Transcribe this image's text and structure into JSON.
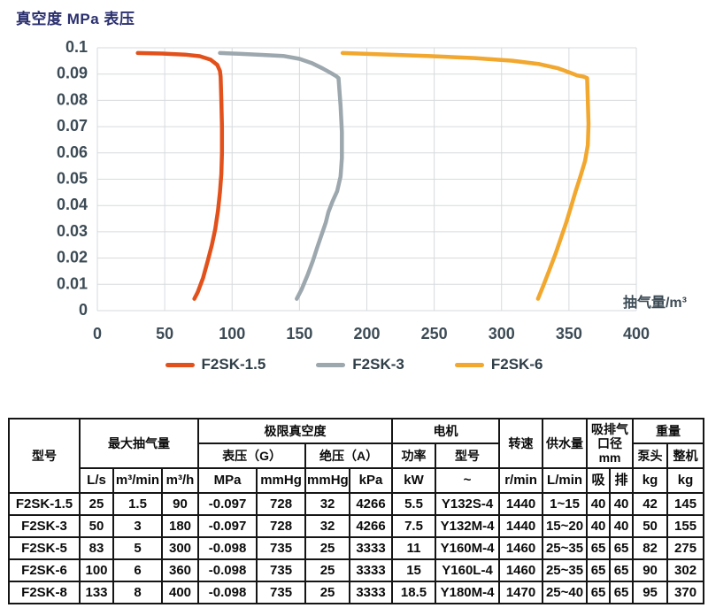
{
  "chart_data": {
    "type": "line",
    "title": "真空度 MPa 表压",
    "xlabel": "抽气量/m³",
    "ylabel": "真空度 MPa 表压",
    "xlim": [
      0,
      400
    ],
    "ylim": [
      0,
      0.1
    ],
    "x_ticks": [
      0,
      50,
      100,
      150,
      200,
      250,
      300,
      350,
      400
    ],
    "y_ticks": [
      0,
      0.01,
      0.02,
      0.03,
      0.04,
      0.05,
      0.06,
      0.07,
      0.08,
      0.09,
      0.1
    ],
    "grid": true,
    "grid_color": "#D7DADC",
    "legend_position": "bottom",
    "series": [
      {
        "name": "F2SK-1.5",
        "color": "#E2511B",
        "points": [
          [
            30,
            0.098
          ],
          [
            48,
            0.0978
          ],
          [
            65,
            0.0974
          ],
          [
            76,
            0.0968
          ],
          [
            84,
            0.0955
          ],
          [
            89,
            0.0935
          ],
          [
            91,
            0.0912
          ],
          [
            91.5,
            0.089
          ],
          [
            92,
            0.08
          ],
          [
            92.5,
            0.07
          ],
          [
            92.5,
            0.06
          ],
          [
            92,
            0.052
          ],
          [
            91,
            0.045
          ],
          [
            89.5,
            0.038
          ],
          [
            87.5,
            0.031
          ],
          [
            85,
            0.025
          ],
          [
            82,
            0.019
          ],
          [
            78.5,
            0.0125
          ],
          [
            74.5,
            0.007
          ],
          [
            72,
            0.0045
          ]
        ]
      },
      {
        "name": "F2SK-3",
        "color": "#9CA7AE",
        "points": [
          [
            91,
            0.098
          ],
          [
            105,
            0.0977
          ],
          [
            122,
            0.0973
          ],
          [
            138,
            0.0969
          ],
          [
            150,
            0.0958
          ],
          [
            159,
            0.0942
          ],
          [
            167,
            0.0922
          ],
          [
            173,
            0.0905
          ],
          [
            177,
            0.0893
          ],
          [
            179,
            0.0885
          ],
          [
            180.5,
            0.078
          ],
          [
            181.5,
            0.068
          ],
          [
            181.5,
            0.058
          ],
          [
            180.5,
            0.051
          ],
          [
            178,
            0.0455
          ],
          [
            174.5,
            0.0415
          ],
          [
            171.5,
            0.0375
          ],
          [
            169.5,
            0.0335
          ],
          [
            166.5,
            0.029
          ],
          [
            163.5,
            0.0245
          ],
          [
            160,
            0.019
          ],
          [
            156,
            0.0135
          ],
          [
            151.5,
            0.008
          ],
          [
            148,
            0.0045
          ]
        ]
      },
      {
        "name": "F2SK-6",
        "color": "#F2A72E",
        "points": [
          [
            182,
            0.098
          ],
          [
            210,
            0.0975
          ],
          [
            245,
            0.0969
          ],
          [
            280,
            0.0961
          ],
          [
            308,
            0.0951
          ],
          [
            328,
            0.0938
          ],
          [
            342,
            0.0922
          ],
          [
            351,
            0.0905
          ],
          [
            356,
            0.0895
          ],
          [
            361,
            0.089
          ],
          [
            363.5,
            0.0885
          ],
          [
            364,
            0.08
          ],
          [
            364.5,
            0.071
          ],
          [
            364,
            0.063
          ],
          [
            362,
            0.057
          ],
          [
            358.5,
            0.051
          ],
          [
            355,
            0.0455
          ],
          [
            351.5,
            0.0395
          ],
          [
            348,
            0.0335
          ],
          [
            344,
            0.0275
          ],
          [
            340,
            0.0215
          ],
          [
            335.5,
            0.0155
          ],
          [
            331,
            0.0095
          ],
          [
            327,
            0.0045
          ]
        ]
      }
    ]
  },
  "table": {
    "header": {
      "model": "型号",
      "max_capacity": "最大抽气量",
      "ultimate_vacuum": "极限真空度",
      "gauge": "表压（G）",
      "absolute": "绝压（A）",
      "motor": "电机",
      "motor_power": "功率",
      "motor_model": "型号",
      "speed": "转速",
      "water_supply": "供水量",
      "port": "吸排气口径mm",
      "weight": "重量",
      "weight_pump": "泵头",
      "weight_total": "整机",
      "units": [
        "L/s",
        "m³/min",
        "m³/h",
        "MPa",
        "mmHg",
        "mmHg",
        "kPa",
        "kW",
        "~",
        "r/min",
        "L/min",
        "吸",
        "排",
        "kg",
        "kg"
      ]
    },
    "rows": [
      [
        "F2SK-1.5",
        "25",
        "1.5",
        "90",
        "-0.097",
        "728",
        "32",
        "4266",
        "5.5",
        "Y132S-4",
        "1440",
        "1~15",
        "40",
        "40",
        "42",
        "145"
      ],
      [
        "F2SK-3",
        "50",
        "3",
        "180",
        "-0.097",
        "728",
        "32",
        "4266",
        "7.5",
        "Y132M-4",
        "1440",
        "15~20",
        "40",
        "40",
        "50",
        "155"
      ],
      [
        "F2SK-5",
        "83",
        "5",
        "300",
        "-0.098",
        "735",
        "25",
        "3333",
        "11",
        "Y160M-4",
        "1460",
        "25~35",
        "65",
        "65",
        "82",
        "275"
      ],
      [
        "F2SK-6",
        "100",
        "6",
        "360",
        "-0.098",
        "735",
        "25",
        "3333",
        "15",
        "Y160L-4",
        "1460",
        "25~35",
        "65",
        "65",
        "90",
        "302"
      ],
      [
        "F2SK-8",
        "133",
        "8",
        "400",
        "-0.098",
        "735",
        "25",
        "3333",
        "18.5",
        "Y180M-4",
        "1470",
        "25~40",
        "65",
        "65",
        "95",
        "370"
      ]
    ]
  }
}
